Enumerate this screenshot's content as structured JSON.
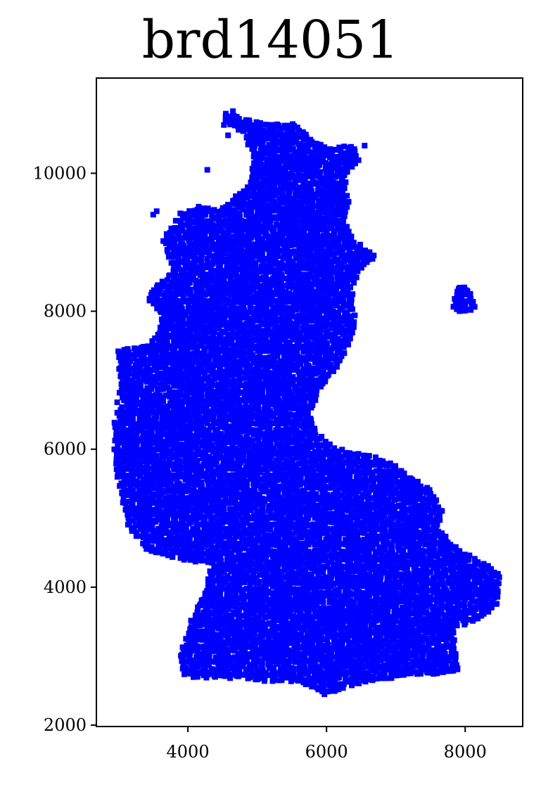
{
  "chart_data": {
    "type": "scatter",
    "title": "brd14051",
    "xlabel": "",
    "ylabel": "",
    "xlim": [
      2680,
      8830
    ],
    "ylim": [
      1980,
      11380
    ],
    "xticks": [
      4000,
      6000,
      8000
    ],
    "yticks": [
      2000,
      4000,
      6000,
      8000,
      10000
    ],
    "xtick_labels": [
      "4000",
      "6000",
      "8000"
    ],
    "ytick_labels": [
      "2000",
      "4000",
      "6000",
      "8000",
      "10000"
    ],
    "grid": false,
    "marker": "square",
    "color": "#0000ff",
    "regions": [
      [
        [
          4550,
          10850
        ],
        [
          4750,
          10800
        ],
        [
          5050,
          10720
        ],
        [
          5500,
          10700
        ],
        [
          5650,
          10600
        ],
        [
          5800,
          10450
        ],
        [
          6050,
          10350
        ],
        [
          6350,
          10400
        ],
        [
          6450,
          10200
        ],
        [
          6250,
          9950
        ],
        [
          6300,
          9600
        ],
        [
          6250,
          9300
        ],
        [
          6400,
          9000
        ],
        [
          6700,
          8800
        ],
        [
          6500,
          8650
        ],
        [
          6350,
          8350
        ],
        [
          6400,
          7950
        ],
        [
          6350,
          7600
        ],
        [
          6150,
          7200
        ],
        [
          5900,
          6900
        ],
        [
          5750,
          6500
        ],
        [
          5850,
          6250
        ],
        [
          6100,
          6000
        ],
        [
          6600,
          5900
        ],
        [
          7000,
          5750
        ],
        [
          7250,
          5550
        ],
        [
          7500,
          5400
        ],
        [
          7650,
          5100
        ],
        [
          7600,
          4850
        ],
        [
          7800,
          4600
        ],
        [
          8050,
          4450
        ],
        [
          8350,
          4300
        ],
        [
          8500,
          4150
        ],
        [
          8450,
          3750
        ],
        [
          8200,
          3550
        ],
        [
          7800,
          3400
        ],
        [
          7850,
          3100
        ],
        [
          7900,
          2800
        ],
        [
          7600,
          2750
        ],
        [
          7300,
          2750
        ],
        [
          6950,
          2700
        ],
        [
          6650,
          2650
        ],
        [
          6250,
          2550
        ],
        [
          5950,
          2450
        ],
        [
          5600,
          2650
        ],
        [
          5100,
          2650
        ],
        [
          4600,
          2700
        ],
        [
          4150,
          2700
        ],
        [
          3950,
          2750
        ],
        [
          3900,
          3000
        ],
        [
          4050,
          3500
        ],
        [
          4250,
          3900
        ],
        [
          4350,
          4350
        ],
        [
          4050,
          4400
        ],
        [
          3700,
          4450
        ],
        [
          3400,
          4550
        ],
        [
          3150,
          4900
        ],
        [
          3050,
          5350
        ],
        [
          2950,
          5850
        ],
        [
          2950,
          6400
        ],
        [
          3050,
          6950
        ],
        [
          3000,
          7400
        ],
        [
          3150,
          7450
        ],
        [
          3450,
          7500
        ],
        [
          3600,
          7700
        ],
        [
          3650,
          7950
        ],
        [
          3450,
          8150
        ],
        [
          3500,
          8300
        ],
        [
          3800,
          8600
        ],
        [
          3650,
          9000
        ],
        [
          3900,
          9400
        ],
        [
          4150,
          9500
        ],
        [
          4450,
          9450
        ],
        [
          4700,
          9650
        ],
        [
          4900,
          9850
        ],
        [
          4950,
          10250
        ],
        [
          4800,
          10600
        ],
        [
          4550,
          10750
        ]
      ],
      [
        [
          7880,
          8300
        ],
        [
          8000,
          8350
        ],
        [
          8080,
          8200
        ],
        [
          8120,
          8050
        ],
        [
          7960,
          8000
        ],
        [
          7850,
          8060
        ]
      ]
    ],
    "isolated_points": [
      [
        4280,
        10050
      ],
      [
        3500,
        9400
      ],
      [
        3550,
        9450
      ],
      [
        4650,
        10900
      ],
      [
        4520,
        10700
      ],
      [
        4580,
        10550
      ],
      [
        6550,
        10400
      ],
      [
        6400,
        10350
      ]
    ]
  }
}
